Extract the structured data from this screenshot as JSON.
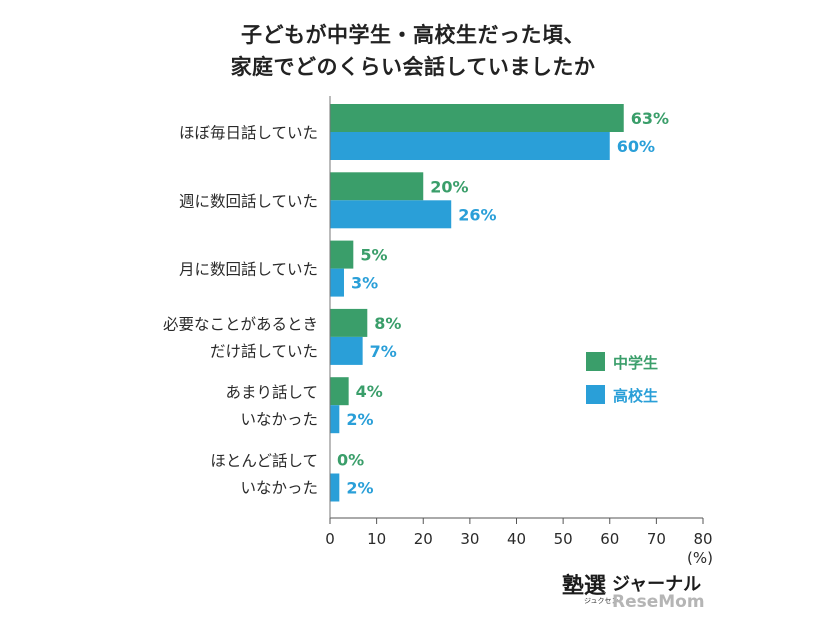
{
  "chart_data": {
    "type": "bar",
    "orientation": "horizontal",
    "title": [
      "子どもが中学生・高校生だった頃、",
      "家庭でどのくらい会話していましたか"
    ],
    "categories": [
      [
        "ほぼ毎日話していた"
      ],
      [
        "週に数回話していた"
      ],
      [
        "月に数回話していた"
      ],
      [
        "必要なことがあるとき",
        "だけ話していた"
      ],
      [
        "あまり話して",
        "いなかった"
      ],
      [
        "ほとんど話して",
        "いなかった"
      ]
    ],
    "series": [
      {
        "name": "中学生",
        "color": "#3a9e6a",
        "values": [
          63,
          20,
          5,
          8,
          4,
          0
        ]
      },
      {
        "name": "高校生",
        "color": "#2a9fd8",
        "values": [
          60,
          26,
          3,
          7,
          2,
          2
        ]
      }
    ],
    "value_suffix": "%",
    "xlim": [
      0,
      80
    ],
    "xticks": [
      0,
      10,
      20,
      30,
      40,
      50,
      60,
      70,
      80
    ],
    "xunit": "(%)",
    "grid": false,
    "legend_position": "right"
  },
  "branding": {
    "logo_kanji": "塾選",
    "logo_kana": "ジャーナル",
    "logo_reading": "ジュクセン",
    "watermark": "ReseMom"
  }
}
